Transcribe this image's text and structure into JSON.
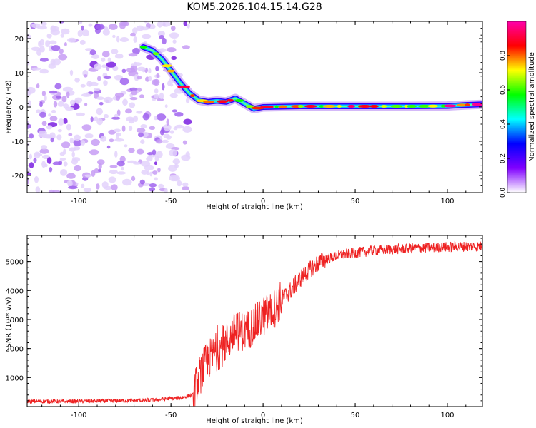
{
  "figure_title": "KOM5.2026.104.15.14.G28",
  "chart_data": [
    {
      "type": "heatmap",
      "title": "KOM5.2026.104.15.14.G28",
      "xlabel": "Height of straight line (km)",
      "ylabel": "Frequency (Hz)",
      "xlim": [
        -128,
        119
      ],
      "ylim": [
        -25,
        25
      ],
      "x_ticks": [
        "-100",
        "-50",
        "0",
        "50",
        "100"
      ],
      "x_tick_values": [
        -100,
        -50,
        0,
        50,
        100
      ],
      "y_ticks": [
        "-20",
        "-10",
        "0",
        "10",
        "20"
      ],
      "y_tick_values": [
        -20,
        -10,
        0,
        10,
        20
      ],
      "colorbar": {
        "label": "Normalized spectral amplitude",
        "range": [
          0,
          1
        ],
        "ticks": [
          "0.0",
          "0.2",
          "0.4",
          "0.6",
          "0.8"
        ],
        "tick_values": [
          0,
          0.2,
          0.4,
          0.6,
          0.8
        ],
        "colors": [
          "#ffffff",
          "#8000ff",
          "#0000ff",
          "#00ffff",
          "#00ff00",
          "#ffff00",
          "#ff0000",
          "#ff00aa"
        ]
      },
      "ridge": {
        "height_km": [
          -65,
          -60,
          -55,
          -50,
          -45,
          -40,
          -35,
          -30,
          -25,
          -20,
          -15,
          -10,
          -5,
          0,
          10,
          20,
          40,
          60,
          80,
          100,
          110,
          119
        ],
        "frequency_hz": [
          17.5,
          16.5,
          14,
          10.5,
          7,
          4,
          2,
          1.5,
          1.8,
          1.5,
          2.5,
          1.0,
          -0.5,
          0.0,
          0.1,
          0.2,
          0.2,
          0.2,
          0.2,
          0.3,
          0.6,
          0.8
        ]
      },
      "noise_region_km": [
        -128,
        -45
      ]
    },
    {
      "type": "line",
      "xlabel": "Height of straight line (km)",
      "ylabel": "SNR (10 * v/v)",
      "xlim": [
        -128,
        119
      ],
      "ylim": [
        0,
        5900
      ],
      "color": "#ee2222",
      "x_ticks": [
        "-100",
        "-50",
        "0",
        "50",
        "100"
      ],
      "x_tick_values": [
        -100,
        -50,
        0,
        50,
        100
      ],
      "y_ticks": [
        "1000",
        "2000",
        "3000",
        "4000",
        "5000"
      ],
      "y_tick_values": [
        1000,
        2000,
        3000,
        4000,
        5000
      ],
      "series": [
        {
          "name": "SNR",
          "x": [
            -128,
            -100,
            -80,
            -60,
            -45,
            -38,
            -35,
            -30,
            -25,
            -20,
            -15,
            -10,
            -5,
            0,
            5,
            10,
            15,
            20,
            25,
            30,
            35,
            40,
            50,
            60,
            70,
            80,
            90,
            100,
            110,
            119
          ],
          "y": [
            180,
            180,
            200,
            220,
            300,
            400,
            1000,
            1600,
            1900,
            2200,
            2600,
            2600,
            2800,
            3100,
            3300,
            3700,
            4000,
            4400,
            4700,
            4950,
            5100,
            5200,
            5300,
            5380,
            5420,
            5450,
            5480,
            5500,
            5520,
            5530
          ]
        }
      ]
    }
  ]
}
